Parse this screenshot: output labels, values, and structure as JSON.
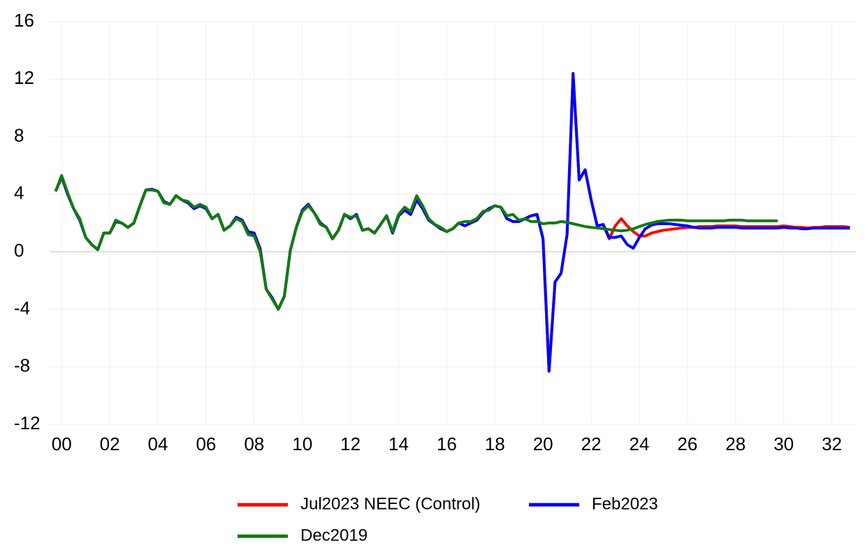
{
  "chart_data": {
    "type": "line",
    "x": [
      1999.75,
      2000,
      2000.25,
      2000.5,
      2000.75,
      2001,
      2001.25,
      2001.5,
      2001.75,
      2002,
      2002.25,
      2002.5,
      2002.75,
      2003,
      2003.25,
      2003.5,
      2003.75,
      2004,
      2004.25,
      2004.5,
      2004.75,
      2005,
      2005.25,
      2005.5,
      2005.75,
      2006,
      2006.25,
      2006.5,
      2006.75,
      2007,
      2007.25,
      2007.5,
      2007.75,
      2008,
      2008.25,
      2008.5,
      2008.75,
      2009,
      2009.25,
      2009.5,
      2009.75,
      2010,
      2010.25,
      2010.5,
      2010.75,
      2011,
      2011.25,
      2011.5,
      2011.75,
      2012,
      2012.25,
      2012.5,
      2012.75,
      2013,
      2013.25,
      2013.5,
      2013.75,
      2014,
      2014.25,
      2014.5,
      2014.75,
      2015,
      2015.25,
      2015.5,
      2015.75,
      2016,
      2016.25,
      2016.5,
      2016.75,
      2017,
      2017.25,
      2017.5,
      2017.75,
      2018,
      2018.25,
      2018.5,
      2018.75,
      2019,
      2019.25,
      2019.5,
      2019.75,
      2020,
      2020.25,
      2020.5,
      2020.75,
      2021,
      2021.25,
      2021.5,
      2021.75,
      2022,
      2022.25,
      2022.5,
      2022.75,
      2023,
      2023.25,
      2023.5,
      2023.75,
      2024,
      2024.25,
      2024.5,
      2024.75,
      2025,
      2025.25,
      2025.5,
      2025.75,
      2026,
      2026.25,
      2026.5,
      2026.75,
      2027,
      2027.25,
      2027.5,
      2027.75,
      2028,
      2028.25,
      2028.5,
      2028.75,
      2029,
      2029.25,
      2029.5,
      2029.75,
      2030,
      2030.25,
      2030.5,
      2030.75,
      2031,
      2031.25,
      2031.5,
      2031.75,
      2032,
      2032.25,
      2032.5,
      2032.75
    ],
    "series": [
      {
        "name": "Jul2023 NEEC (Control)",
        "color": "#ff0000",
        "values": [
          4.2,
          5.2,
          4.0,
          3.0,
          2.2,
          1.0,
          0.5,
          0.15,
          1.3,
          1.3,
          2.1,
          2.0,
          1.7,
          2.0,
          3.2,
          4.3,
          4.35,
          4.2,
          3.5,
          3.3,
          3.9,
          3.6,
          3.4,
          3.0,
          3.2,
          3.0,
          2.3,
          2.6,
          1.5,
          1.8,
          2.4,
          2.2,
          1.4,
          1.3,
          0.2,
          -2.6,
          -3.2,
          -4.0,
          -3.1,
          0.1,
          1.7,
          2.9,
          3.3,
          2.7,
          2.0,
          1.7,
          0.9,
          1.5,
          2.6,
          2.3,
          2.6,
          1.5,
          1.6,
          1.3,
          1.9,
          2.5,
          1.3,
          2.5,
          2.9,
          2.6,
          3.6,
          3.0,
          2.2,
          1.9,
          1.6,
          1.4,
          1.6,
          2.0,
          1.8,
          2.0,
          2.2,
          2.7,
          3.0,
          3.2,
          3.1,
          2.3,
          2.1,
          2.1,
          2.3,
          2.5,
          2.6,
          0.9,
          -8.3,
          -2.1,
          -1.5,
          1.2,
          12.4,
          5.0,
          5.7,
          3.6,
          1.8,
          1.9,
          0.9,
          1.8,
          2.3,
          1.8,
          1.4,
          1.1,
          1.1,
          1.3,
          1.4,
          1.5,
          1.55,
          1.6,
          1.65,
          1.7,
          1.7,
          1.75,
          1.75,
          1.75,
          1.8,
          1.8,
          1.8,
          1.8,
          1.75,
          1.75,
          1.75,
          1.75,
          1.75,
          1.75,
          1.75,
          1.8,
          1.75,
          1.7,
          1.7,
          1.65,
          1.7,
          1.7,
          1.75,
          1.75,
          1.75,
          1.75,
          1.7
        ]
      },
      {
        "name": "Feb2023",
        "color": "#0000ff",
        "values": [
          4.2,
          5.2,
          4.0,
          3.0,
          2.2,
          1.0,
          0.5,
          0.15,
          1.3,
          1.3,
          2.1,
          2.0,
          1.7,
          2.0,
          3.2,
          4.3,
          4.35,
          4.2,
          3.5,
          3.3,
          3.9,
          3.6,
          3.4,
          3.0,
          3.2,
          3.0,
          2.3,
          2.6,
          1.5,
          1.8,
          2.4,
          2.2,
          1.4,
          1.3,
          0.2,
          -2.6,
          -3.2,
          -4.0,
          -3.1,
          0.1,
          1.7,
          2.9,
          3.3,
          2.7,
          2.0,
          1.7,
          0.9,
          1.5,
          2.6,
          2.3,
          2.6,
          1.5,
          1.6,
          1.3,
          1.9,
          2.5,
          1.3,
          2.5,
          2.9,
          2.6,
          3.6,
          3.0,
          2.2,
          1.9,
          1.6,
          1.4,
          1.6,
          2.0,
          1.8,
          2.0,
          2.2,
          2.7,
          3.0,
          3.2,
          3.1,
          2.3,
          2.1,
          2.1,
          2.3,
          2.5,
          2.6,
          0.9,
          -8.3,
          -2.1,
          -1.5,
          1.2,
          12.4,
          5.0,
          5.7,
          3.6,
          1.8,
          1.9,
          1.0,
          1.0,
          1.1,
          0.5,
          0.25,
          1.0,
          1.6,
          1.85,
          1.95,
          1.95,
          1.95,
          1.9,
          1.85,
          1.8,
          1.7,
          1.65,
          1.65,
          1.65,
          1.7,
          1.7,
          1.7,
          1.7,
          1.65,
          1.65,
          1.65,
          1.65,
          1.65,
          1.65,
          1.65,
          1.7,
          1.65,
          1.65,
          1.6,
          1.6,
          1.65,
          1.65,
          1.65,
          1.65,
          1.65,
          1.65,
          1.65
        ]
      },
      {
        "name": "Dec2019",
        "color": "#107c10",
        "values": [
          4.2,
          5.3,
          4.1,
          3.0,
          2.3,
          1.0,
          0.5,
          0.15,
          1.3,
          1.3,
          2.2,
          2.0,
          1.7,
          2.0,
          3.2,
          4.3,
          4.3,
          4.2,
          3.4,
          3.3,
          3.9,
          3.6,
          3.5,
          3.1,
          3.3,
          3.1,
          2.3,
          2.6,
          1.5,
          1.8,
          2.3,
          2.1,
          1.2,
          1.1,
          0.0,
          -2.6,
          -3.3,
          -4.0,
          -3.1,
          0.1,
          1.7,
          2.8,
          3.2,
          2.7,
          1.9,
          1.7,
          0.9,
          1.5,
          2.6,
          2.4,
          2.5,
          1.5,
          1.6,
          1.3,
          1.9,
          2.5,
          1.4,
          2.6,
          3.1,
          2.8,
          3.9,
          3.2,
          2.3,
          1.9,
          1.7,
          1.4,
          1.6,
          2.0,
          2.1,
          2.1,
          2.3,
          2.8,
          2.9,
          3.2,
          3.1,
          2.5,
          2.6,
          2.2,
          2.3,
          2.1,
          2.1,
          1.95,
          2.0,
          2.0,
          2.1,
          2.05,
          1.95,
          1.85,
          1.75,
          1.7,
          1.65,
          1.6,
          1.55,
          1.5,
          1.45,
          1.5,
          1.6,
          1.75,
          1.9,
          2.0,
          2.1,
          2.15,
          2.2,
          2.2,
          2.2,
          2.15,
          2.15,
          2.15,
          2.15,
          2.15,
          2.15,
          2.15,
          2.2,
          2.2,
          2.2,
          2.15,
          2.15,
          2.15,
          2.15,
          2.15,
          2.15,
          null,
          null,
          null,
          null,
          null,
          null,
          null,
          null,
          null,
          null,
          null,
          null
        ]
      }
    ],
    "xlim": [
      1999.5,
      2033
    ],
    "xticks": [
      {
        "value": 2000,
        "label": "00"
      },
      {
        "value": 2002,
        "label": "02"
      },
      {
        "value": 2004,
        "label": "04"
      },
      {
        "value": 2006,
        "label": "06"
      },
      {
        "value": 2008,
        "label": "08"
      },
      {
        "value": 2010,
        "label": "10"
      },
      {
        "value": 2012,
        "label": "12"
      },
      {
        "value": 2014,
        "label": "14"
      },
      {
        "value": 2016,
        "label": "16"
      },
      {
        "value": 2018,
        "label": "18"
      },
      {
        "value": 2020,
        "label": "20"
      },
      {
        "value": 2022,
        "label": "22"
      },
      {
        "value": 2024,
        "label": "24"
      },
      {
        "value": 2026,
        "label": "26"
      },
      {
        "value": 2028,
        "label": "28"
      },
      {
        "value": 2030,
        "label": "30"
      },
      {
        "value": 2032,
        "label": "32"
      }
    ],
    "ylim": [
      -12,
      16
    ],
    "yticks": [
      -12,
      -8,
      -4,
      0,
      4,
      8,
      12,
      16
    ],
    "grid": true,
    "legend": "bottom"
  }
}
